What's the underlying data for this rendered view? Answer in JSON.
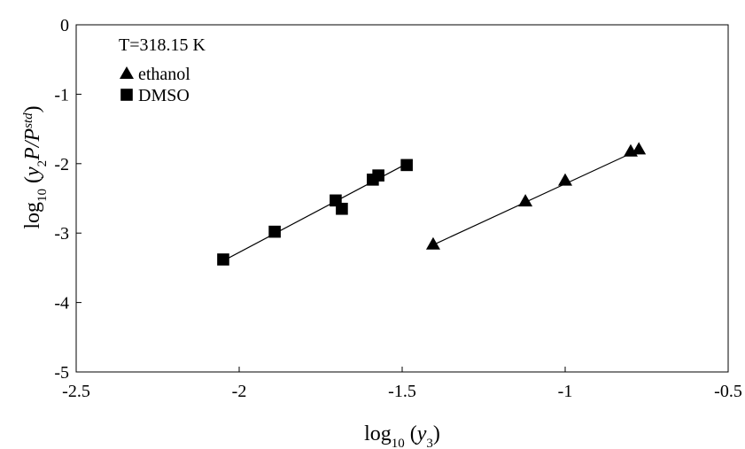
{
  "chart_data": {
    "type": "scatter",
    "xlabel": [
      {
        "text": "log"
      },
      {
        "text": "10",
        "shift": "sub"
      },
      {
        "text": " ("
      },
      {
        "text": "y",
        "italic": true
      },
      {
        "text": "3",
        "shift": "sub"
      },
      {
        "text": ")"
      }
    ],
    "ylabel": [
      {
        "text": "log"
      },
      {
        "text": "10",
        "shift": "sub"
      },
      {
        "text": " ("
      },
      {
        "text": "y",
        "italic": true
      },
      {
        "text": "2",
        "shift": "sub"
      },
      {
        "text": "P/P",
        "italic": true
      },
      {
        "text": "std",
        "shift": "sup",
        "italic": true
      },
      {
        "text": ")"
      }
    ],
    "annotation": "T=318.15 K",
    "legend": "top-left",
    "xlim": [
      -2.5,
      -0.5
    ],
    "xticks": [
      -2.5,
      -2,
      -1.5,
      -1,
      -0.5
    ],
    "ylim": [
      -5,
      0
    ],
    "yticks": [
      0,
      -1,
      -2,
      -3,
      -4,
      -5
    ],
    "series": [
      {
        "name": "ethanol",
        "marker": "triangle",
        "color": "#000000",
        "x": [
          -1.405,
          -1.122,
          -1.0,
          -0.799,
          -0.774
        ],
        "values": [
          -3.16,
          -2.54,
          -2.24,
          -1.82,
          -1.79
        ],
        "fit_x": [
          -1.405,
          -0.774
        ],
        "fit_y": [
          -3.17,
          -1.8
        ]
      },
      {
        "name": "DMSO",
        "marker": "square",
        "color": "#000000",
        "x": [
          -2.049,
          -1.891,
          -1.704,
          -1.685,
          -1.59,
          -1.573,
          -1.486
        ],
        "values": [
          -3.38,
          -2.98,
          -2.53,
          -2.65,
          -2.23,
          -2.17,
          -2.02
        ],
        "fit_x": [
          -2.049,
          -1.486
        ],
        "fit_y": [
          -3.4,
          -2.0
        ]
      }
    ]
  }
}
